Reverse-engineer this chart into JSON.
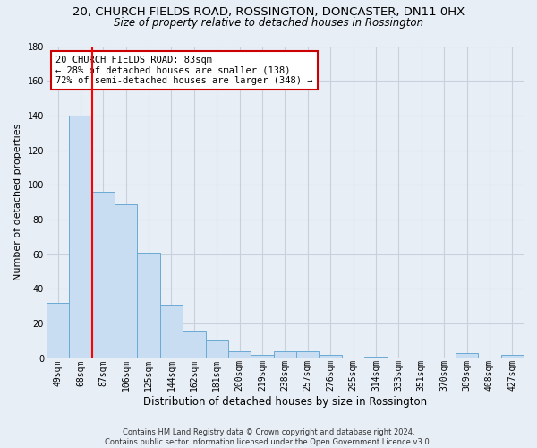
{
  "title_line1": "20, CHURCH FIELDS ROAD, ROSSINGTON, DONCASTER, DN11 0HX",
  "title_line2": "Size of property relative to detached houses in Rossington",
  "xlabel": "Distribution of detached houses by size in Rossington",
  "ylabel": "Number of detached properties",
  "footnote": "Contains HM Land Registry data © Crown copyright and database right 2024.\nContains public sector information licensed under the Open Government Licence v3.0.",
  "categories": [
    "49sqm",
    "68sqm",
    "87sqm",
    "106sqm",
    "125sqm",
    "144sqm",
    "162sqm",
    "181sqm",
    "200sqm",
    "219sqm",
    "238sqm",
    "257sqm",
    "276sqm",
    "295sqm",
    "314sqm",
    "333sqm",
    "351sqm",
    "370sqm",
    "389sqm",
    "408sqm",
    "427sqm"
  ],
  "values": [
    32,
    140,
    96,
    89,
    61,
    31,
    16,
    10,
    4,
    2,
    4,
    4,
    2,
    0,
    1,
    0,
    0,
    0,
    3,
    0,
    2
  ],
  "bar_color": "#c8ddf2",
  "bar_edge_color": "#6aaad4",
  "grid_color": "#c8d0dc",
  "background_color": "#e8eef6",
  "red_line_x": 1.5,
  "annotation_text": "20 CHURCH FIELDS ROAD: 83sqm\n← 28% of detached houses are smaller (138)\n72% of semi-detached houses are larger (348) →",
  "annotation_box_color": "#ffffff",
  "annotation_box_edge": "#cc0000",
  "ylim": [
    0,
    180
  ],
  "yticks": [
    0,
    20,
    40,
    60,
    80,
    100,
    120,
    140,
    160,
    180
  ],
  "title1_fontsize": 9.5,
  "title2_fontsize": 8.5,
  "ylabel_fontsize": 8,
  "xlabel_fontsize": 8.5,
  "tick_fontsize": 7,
  "annot_fontsize": 7.5,
  "footnote_fontsize": 6
}
